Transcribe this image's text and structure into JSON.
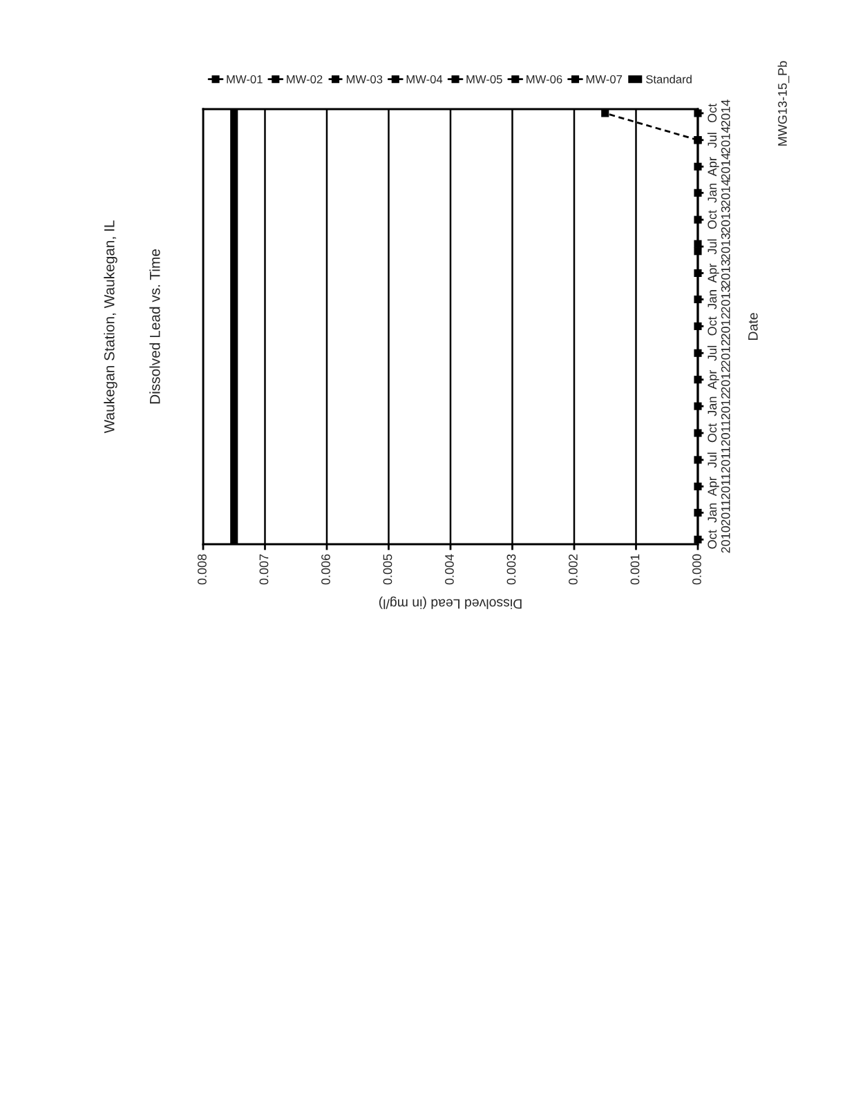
{
  "chart_data": {
    "type": "line",
    "orientation": "horizontal",
    "title": "Waukegan Station, Waukegan, IL",
    "subtitle": "Dissolved Lead vs. Time",
    "xlabel": "Dissolved Lead (in mg/l)",
    "ylabel": "Date",
    "xlim": [
      0.008,
      0
    ],
    "xticks": [
      0.008,
      0.007,
      0.006,
      0.005,
      0.004,
      0.003,
      0.002,
      0.001,
      {
        "value": 0,
        "label": "0.000"
      }
    ],
    "ylim": [
      "2010-09-15",
      "2014-10-15"
    ],
    "yticks": [
      {
        "value": "2010-10-01",
        "label": "Oct\n2010"
      },
      {
        "value": "2011-01-01",
        "label": "Jan\n2011"
      },
      {
        "value": "2011-04-01",
        "label": "Apr\n2011"
      },
      {
        "value": "2011-07-01",
        "label": "Jul\n2011"
      },
      {
        "value": "2011-10-01",
        "label": "Oct\n2011"
      },
      {
        "value": "2012-01-01",
        "label": "Jan\n2012"
      },
      {
        "value": "2012-04-01",
        "label": "Apr\n2012"
      },
      {
        "value": "2012-07-01",
        "label": "Jul\n2012"
      },
      {
        "value": "2012-10-01",
        "label": "Oct\n2012"
      },
      {
        "value": "2013-01-01",
        "label": "Jan\n2013"
      },
      {
        "value": "2013-04-01",
        "label": "Apr\n2013"
      },
      {
        "value": "2013-07-01",
        "label": "Jul\n2013"
      },
      {
        "value": "2013-10-01",
        "label": "Oct\n2013"
      },
      {
        "value": "2014-01-01",
        "label": "Jan\n2014"
      },
      {
        "value": "2014-04-01",
        "label": "Apr\n2014"
      },
      {
        "value": "2014-07-01",
        "label": "Jul\n2014"
      },
      {
        "value": "2014-10-01",
        "label": "Oct\n2014"
      }
    ],
    "grid": "x",
    "legend": "top",
    "marker": "square",
    "line_style": "solid",
    "x": [
      "2010-10-01",
      "2011-01-01",
      "2011-04-01",
      "2011-07-01",
      "2011-10-01",
      "2012-01-01",
      "2012-04-01",
      "2012-07-01",
      "2012-10-01",
      "2013-01-01",
      "2013-04-01",
      "2013-06-15",
      "2013-07-10",
      "2013-10-01",
      "2014-01-01",
      "2014-04-01",
      "2014-07-01",
      "2014-10-01"
    ],
    "series": [
      {
        "name": "MW-01",
        "color": "#000000",
        "values": [
          null,
          null,
          null,
          null,
          null,
          null,
          null,
          null,
          null,
          null,
          null,
          null,
          null,
          null,
          null,
          null,
          null,
          null
        ]
      },
      {
        "name": "MW-02",
        "color": "#000000",
        "values": [
          null,
          null,
          null,
          null,
          null,
          null,
          null,
          null,
          null,
          null,
          null,
          null,
          null,
          null,
          null,
          null,
          null,
          null
        ]
      },
      {
        "name": "MW-03",
        "color": "#000000",
        "line_style": "dashed",
        "values": [
          null,
          null,
          null,
          null,
          null,
          null,
          null,
          null,
          null,
          null,
          null,
          null,
          null,
          null,
          null,
          null,
          0,
          0.0015
        ]
      },
      {
        "name": "MW-04",
        "color": "#000000",
        "values": [
          null,
          null,
          null,
          null,
          null,
          null,
          null,
          null,
          null,
          null,
          null,
          null,
          null,
          null,
          null,
          null,
          null,
          null
        ]
      },
      {
        "name": "MW-05",
        "color": "#000000",
        "values": [
          null,
          null,
          null,
          null,
          null,
          null,
          null,
          null,
          null,
          null,
          null,
          null,
          null,
          null,
          null,
          null,
          null,
          null
        ]
      },
      {
        "name": "MW-06",
        "color": "#000000",
        "values": [
          null,
          null,
          null,
          null,
          null,
          null,
          null,
          null,
          null,
          null,
          null,
          null,
          null,
          null,
          null,
          null,
          null,
          null
        ]
      },
      {
        "name": "MW-07",
        "color": "#000000",
        "values": [
          0,
          0,
          0,
          0,
          0,
          0,
          0,
          0,
          0,
          0,
          0,
          0,
          0,
          0,
          0,
          0,
          0,
          0
        ]
      }
    ],
    "ref_lines": [
      {
        "axis": "x",
        "value": 0.0075,
        "label": "Standard",
        "color": "#000000"
      }
    ],
    "annotations": [
      "MWG13-15_Pb"
    ]
  }
}
